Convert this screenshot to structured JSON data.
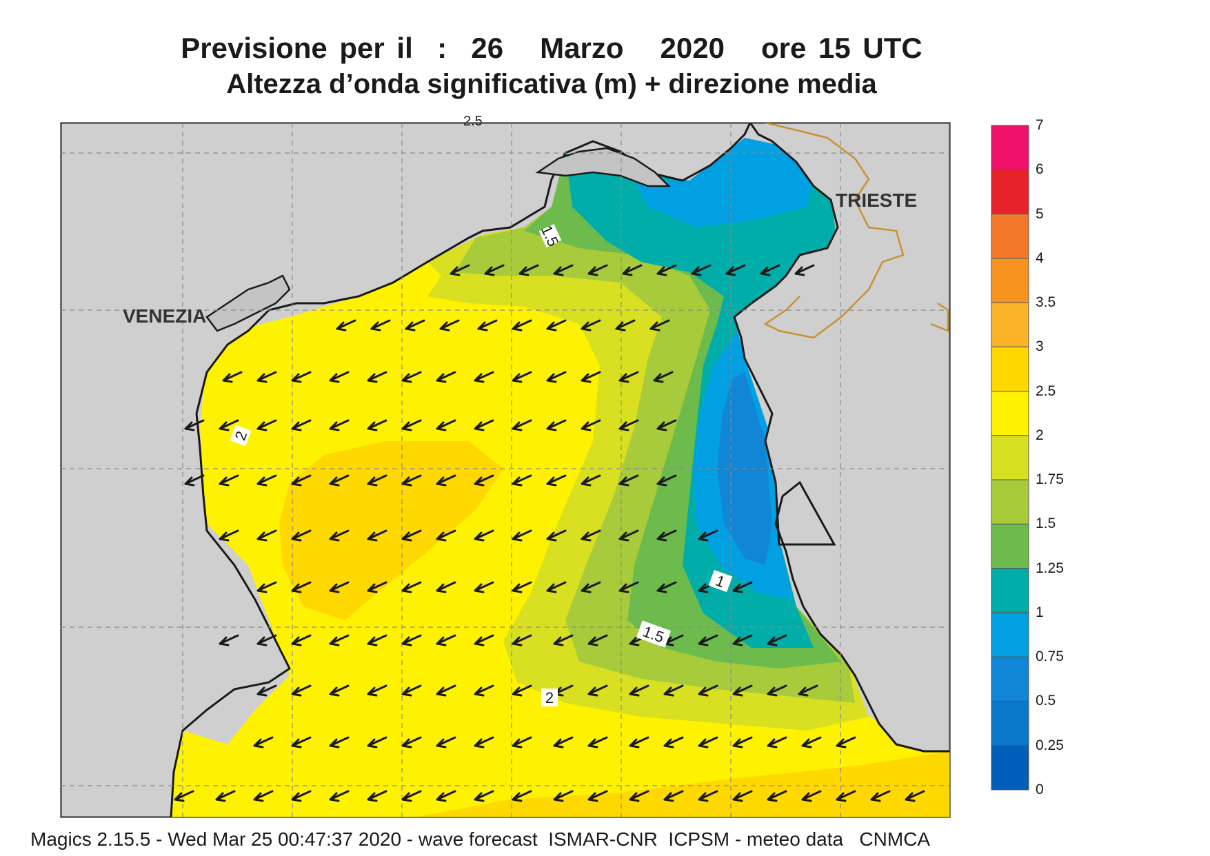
{
  "header": {
    "title_line1": "Previsione per il  :  26   Marzo   2020   ore 15 UTC",
    "title_line2": "Altezza d’onda significativa (m) + direzione media"
  },
  "footer": {
    "text": "Magics 2.15.5 - Wed Mar 25 00:47:37 2020 - wave forecast  ISMAR-CNR  ICPSM - meteo data   CNMCA"
  },
  "map": {
    "cities": [
      "VENEZIA",
      "TRIESTE"
    ],
    "contour_labels": [
      "1.5",
      "2",
      "1",
      "1.5",
      "2"
    ],
    "top_edge_label": "2.5",
    "colors": {
      "land": "#cfcfcf",
      "coast": "#1a1a1a",
      "border": "#c8912f",
      "grid": "#8a8a8a"
    }
  },
  "legend": {
    "labels": [
      "7",
      "6",
      "5",
      "4",
      "3.5",
      "3",
      "2.5",
      "2",
      "1.75",
      "1.5",
      "1.25",
      "1",
      "0.75",
      "0.5",
      "0.25",
      "0"
    ],
    "colors": [
      "#f0126a",
      "#e8222a",
      "#f3782a",
      "#f79321",
      "#fbb32a",
      "#ffd800",
      "#fff200",
      "#d8e021",
      "#a7cb3b",
      "#6dbb4d",
      "#00ada9",
      "#00a0e3",
      "#1186d6",
      "#0a78c8",
      "#005eb8"
    ]
  }
}
